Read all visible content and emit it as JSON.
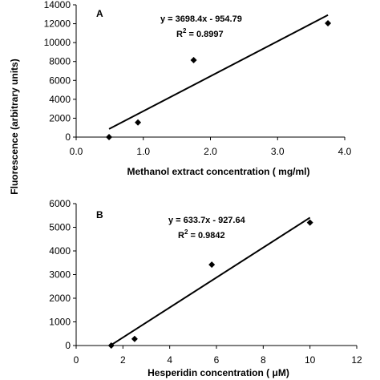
{
  "figure": {
    "ylabel": "Fluorescence (arbitrary units)"
  },
  "chart_data": [
    {
      "type": "scatter",
      "panel": "A",
      "xlabel": "Methanol extract concentration ( mg/ml)",
      "ylabel": "Fluorescence (arbitrary units)",
      "xlim": [
        0.0,
        4.0
      ],
      "ylim": [
        0,
        14000
      ],
      "xticks": [
        0.0,
        1.0,
        2.0,
        3.0,
        4.0
      ],
      "xtick_labels": [
        "0.0",
        "1.0",
        "2.0",
        "3.0",
        "4.0"
      ],
      "yticks": [
        0,
        2000,
        4000,
        6000,
        8000,
        10000,
        12000,
        14000
      ],
      "ytick_labels": [
        "0",
        "2000",
        "4000",
        "6000",
        "8000",
        "10000",
        "12000",
        "14000"
      ],
      "points": {
        "x": [
          0.49,
          0.92,
          1.75,
          3.75
        ],
        "y": [
          0,
          1550,
          8150,
          12050
        ]
      },
      "trendline": {
        "slope": 3698.4,
        "intercept": -954.79,
        "x_range": [
          0.49,
          3.75
        ]
      },
      "equation": "y = 3698.4x - 954.79",
      "r2_label": "R",
      "r2_sup": "2",
      "r2_value": " = 0.8997",
      "grid": false,
      "legend": false
    },
    {
      "type": "scatter",
      "panel": "B",
      "xlabel": "Hesperidin concentration ( μM)",
      "ylabel": "Fluorescence (arbitrary units)",
      "xlim": [
        0,
        12
      ],
      "ylim": [
        0,
        6000
      ],
      "xticks": [
        0,
        2,
        4,
        6,
        8,
        10,
        12
      ],
      "xtick_labels": [
        "0",
        "2",
        "4",
        "6",
        "8",
        "10",
        "12"
      ],
      "yticks": [
        0,
        1000,
        2000,
        3000,
        4000,
        5000,
        6000
      ],
      "ytick_labels": [
        "0",
        "1000",
        "2000",
        "3000",
        "4000",
        "5000",
        "6000"
      ],
      "points": {
        "x": [
          1.5,
          2.5,
          5.8,
          10.0
        ],
        "y": [
          0,
          280,
          3420,
          5200
        ]
      },
      "trendline": {
        "slope": 633.7,
        "intercept": -927.64,
        "x_range": [
          1.5,
          10.0
        ]
      },
      "equation": "y = 633.7x - 927.64",
      "r2_label": "R",
      "r2_sup": "2",
      "r2_value": " = 0.9842",
      "grid": false,
      "legend": false
    }
  ]
}
